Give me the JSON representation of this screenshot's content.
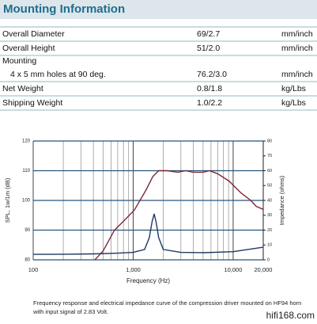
{
  "header": {
    "title": "Mounting Information"
  },
  "table": {
    "rows": [
      [
        "Overall Diameter",
        "69/2.7",
        "mm/inch"
      ],
      [
        "Overall Height",
        "51/2.0",
        "mm/inch"
      ],
      [
        "Mounting"
      ],
      [
        "4 x 5 mm holes at 90 deg.",
        "76.2/3.0",
        "mm/inch"
      ],
      [
        "Net Weight",
        "0.8/1.8",
        "kg/Lbs"
      ],
      [
        "Shipping Weight",
        "1.0/2.2",
        "kg/Lbs"
      ]
    ]
  },
  "chart_data": {
    "type": "line",
    "x_label": "Frequency (Hz)",
    "y_label": "SPL, 1w/1m (dB)",
    "y2_label": "Impedance (ohms)",
    "log_x": true,
    "xlim": [
      100,
      20000
    ],
    "xticks": [
      100,
      {
        "value": 1000,
        "label": "1,000"
      },
      {
        "value": 10000,
        "label": "10,000"
      },
      {
        "value": 20000,
        "label": "20,000"
      }
    ],
    "minor_xticks": [
      200,
      300,
      400,
      500,
      600,
      700,
      800,
      900,
      2000,
      3000,
      4000,
      5000,
      6000,
      7000,
      8000,
      9000
    ],
    "ylim": [
      80,
      120
    ],
    "yticks": [
      80,
      90,
      100,
      110,
      120
    ],
    "y2lim": [
      0,
      80
    ],
    "y2ticks": [
      0,
      10,
      20,
      30,
      40,
      50,
      60,
      70,
      80
    ],
    "grid": true,
    "series": [
      {
        "color": "#7a2a3a",
        "axis": "y",
        "x": [
          414,
          500,
          650,
          800,
          1030,
          1350,
          1570,
          1800,
          2200,
          2800,
          3350,
          4000,
          5000,
          5800,
          7000,
          9100,
          12000,
          15000,
          17000,
          20000
        ],
        "values": [
          80,
          83,
          90,
          93,
          96.8,
          103.6,
          108,
          110,
          110,
          109.5,
          110,
          109.5,
          109.5,
          110,
          109,
          106.5,
          102.5,
          100,
          98,
          97
        ]
      },
      {
        "color": "#1f3a5f",
        "axis": "y2",
        "x": [
          100,
          200,
          400,
          700,
          1000,
          1300,
          1450,
          1550,
          1620,
          1700,
          1800,
          2000,
          3000,
          5000,
          10000,
          20000
        ],
        "values": [
          3.7,
          3.8,
          4,
          4.5,
          5,
          7,
          15,
          26,
          31,
          25,
          15,
          7,
          5,
          4.8,
          5.5,
          8.5
        ]
      }
    ]
  },
  "caption": "Frequency response and electrical impedance curve of the compression driver mounted on HF94 horn with input signal of 2.83 Volt.",
  "watermark": "hifi168.com"
}
